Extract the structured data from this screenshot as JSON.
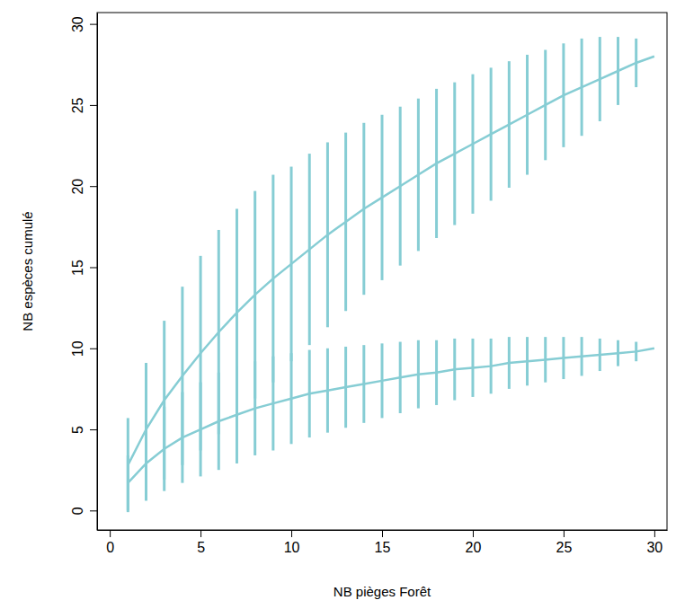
{
  "chart_data": {
    "type": "line",
    "x_label": "NB pièges Forêt",
    "y_label": "NB espèces cumulé",
    "x": [
      1,
      2,
      3,
      4,
      5,
      6,
      7,
      8,
      9,
      10,
      11,
      12,
      13,
      14,
      15,
      16,
      17,
      18,
      19,
      20,
      21,
      22,
      23,
      24,
      25,
      26,
      27,
      28,
      29,
      30
    ],
    "series": [
      {
        "color": "#86cdd4",
        "values": [
          2.8,
          5.0,
          6.8,
          8.3,
          9.7,
          11.0,
          12.2,
          13.3,
          14.3,
          15.2,
          16.1,
          17.0,
          17.8,
          18.6,
          19.3,
          20.0,
          20.7,
          21.4,
          22.0,
          22.6,
          23.2,
          23.8,
          24.4,
          25.0,
          25.6,
          26.1,
          26.6,
          27.1,
          27.6,
          28.0
        ],
        "error": [
          2.9,
          4.1,
          4.9,
          5.5,
          6.0,
          6.3,
          6.4,
          6.4,
          6.4,
          6.0,
          5.9,
          5.7,
          5.5,
          5.3,
          5.1,
          4.9,
          4.7,
          4.6,
          4.4,
          4.3,
          4.1,
          3.9,
          3.7,
          3.4,
          3.2,
          3.0,
          2.6,
          2.1,
          1.5,
          null
        ]
      },
      {
        "color": "#86cdd4",
        "values": [
          1.7,
          2.9,
          3.8,
          4.5,
          5.0,
          5.5,
          5.9,
          6.3,
          6.6,
          6.9,
          7.2,
          7.4,
          7.6,
          7.8,
          8.0,
          8.2,
          8.4,
          8.5,
          8.7,
          8.8,
          8.9,
          9.1,
          9.2,
          9.3,
          9.4,
          9.5,
          9.6,
          9.7,
          9.8,
          10.0
        ],
        "error": [
          1.7,
          2.3,
          2.6,
          2.8,
          2.9,
          3.0,
          3.0,
          2.9,
          2.9,
          2.8,
          2.7,
          2.6,
          2.5,
          2.4,
          2.3,
          2.2,
          2.1,
          2.0,
          1.9,
          1.8,
          1.7,
          1.6,
          1.5,
          1.4,
          1.3,
          1.2,
          1.0,
          0.8,
          0.6,
          null
        ]
      }
    ],
    "xlim": [
      -0.7,
      30.7
    ],
    "ylim": [
      -1.2,
      30.7
    ],
    "xticks": [
      0,
      5,
      10,
      15,
      20,
      25,
      30
    ],
    "yticks": [
      0,
      5,
      10,
      15,
      20,
      25,
      30
    ],
    "grid": false
  }
}
